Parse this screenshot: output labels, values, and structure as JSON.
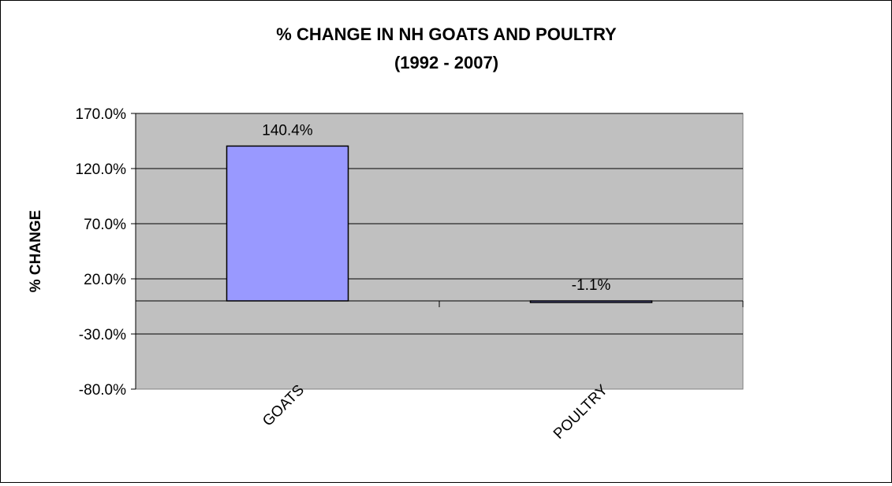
{
  "chart_data": {
    "type": "bar",
    "title": "% CHANGE IN NH GOATS AND POULTRY",
    "subtitle": "(1992 - 2007)",
    "xlabel": "",
    "ylabel": "% CHANGE",
    "categories": [
      "GOATS",
      "POULTRY"
    ],
    "values": [
      140.4,
      -1.1
    ],
    "data_labels": [
      "140.4%",
      "-1.1%"
    ],
    "yticks": [
      170,
      120,
      70,
      20,
      -30,
      -80
    ],
    "ytick_labels": [
      "170.0%",
      "120.0%",
      "70.0%",
      "20.0%",
      "-30.0%",
      "-80.0%"
    ],
    "ylim": [
      -80,
      170
    ],
    "grid": true,
    "legend": "none",
    "colors": {
      "bar": "#9999FF",
      "plot_background": "#C0C0C0",
      "gridline": "#000000"
    }
  }
}
